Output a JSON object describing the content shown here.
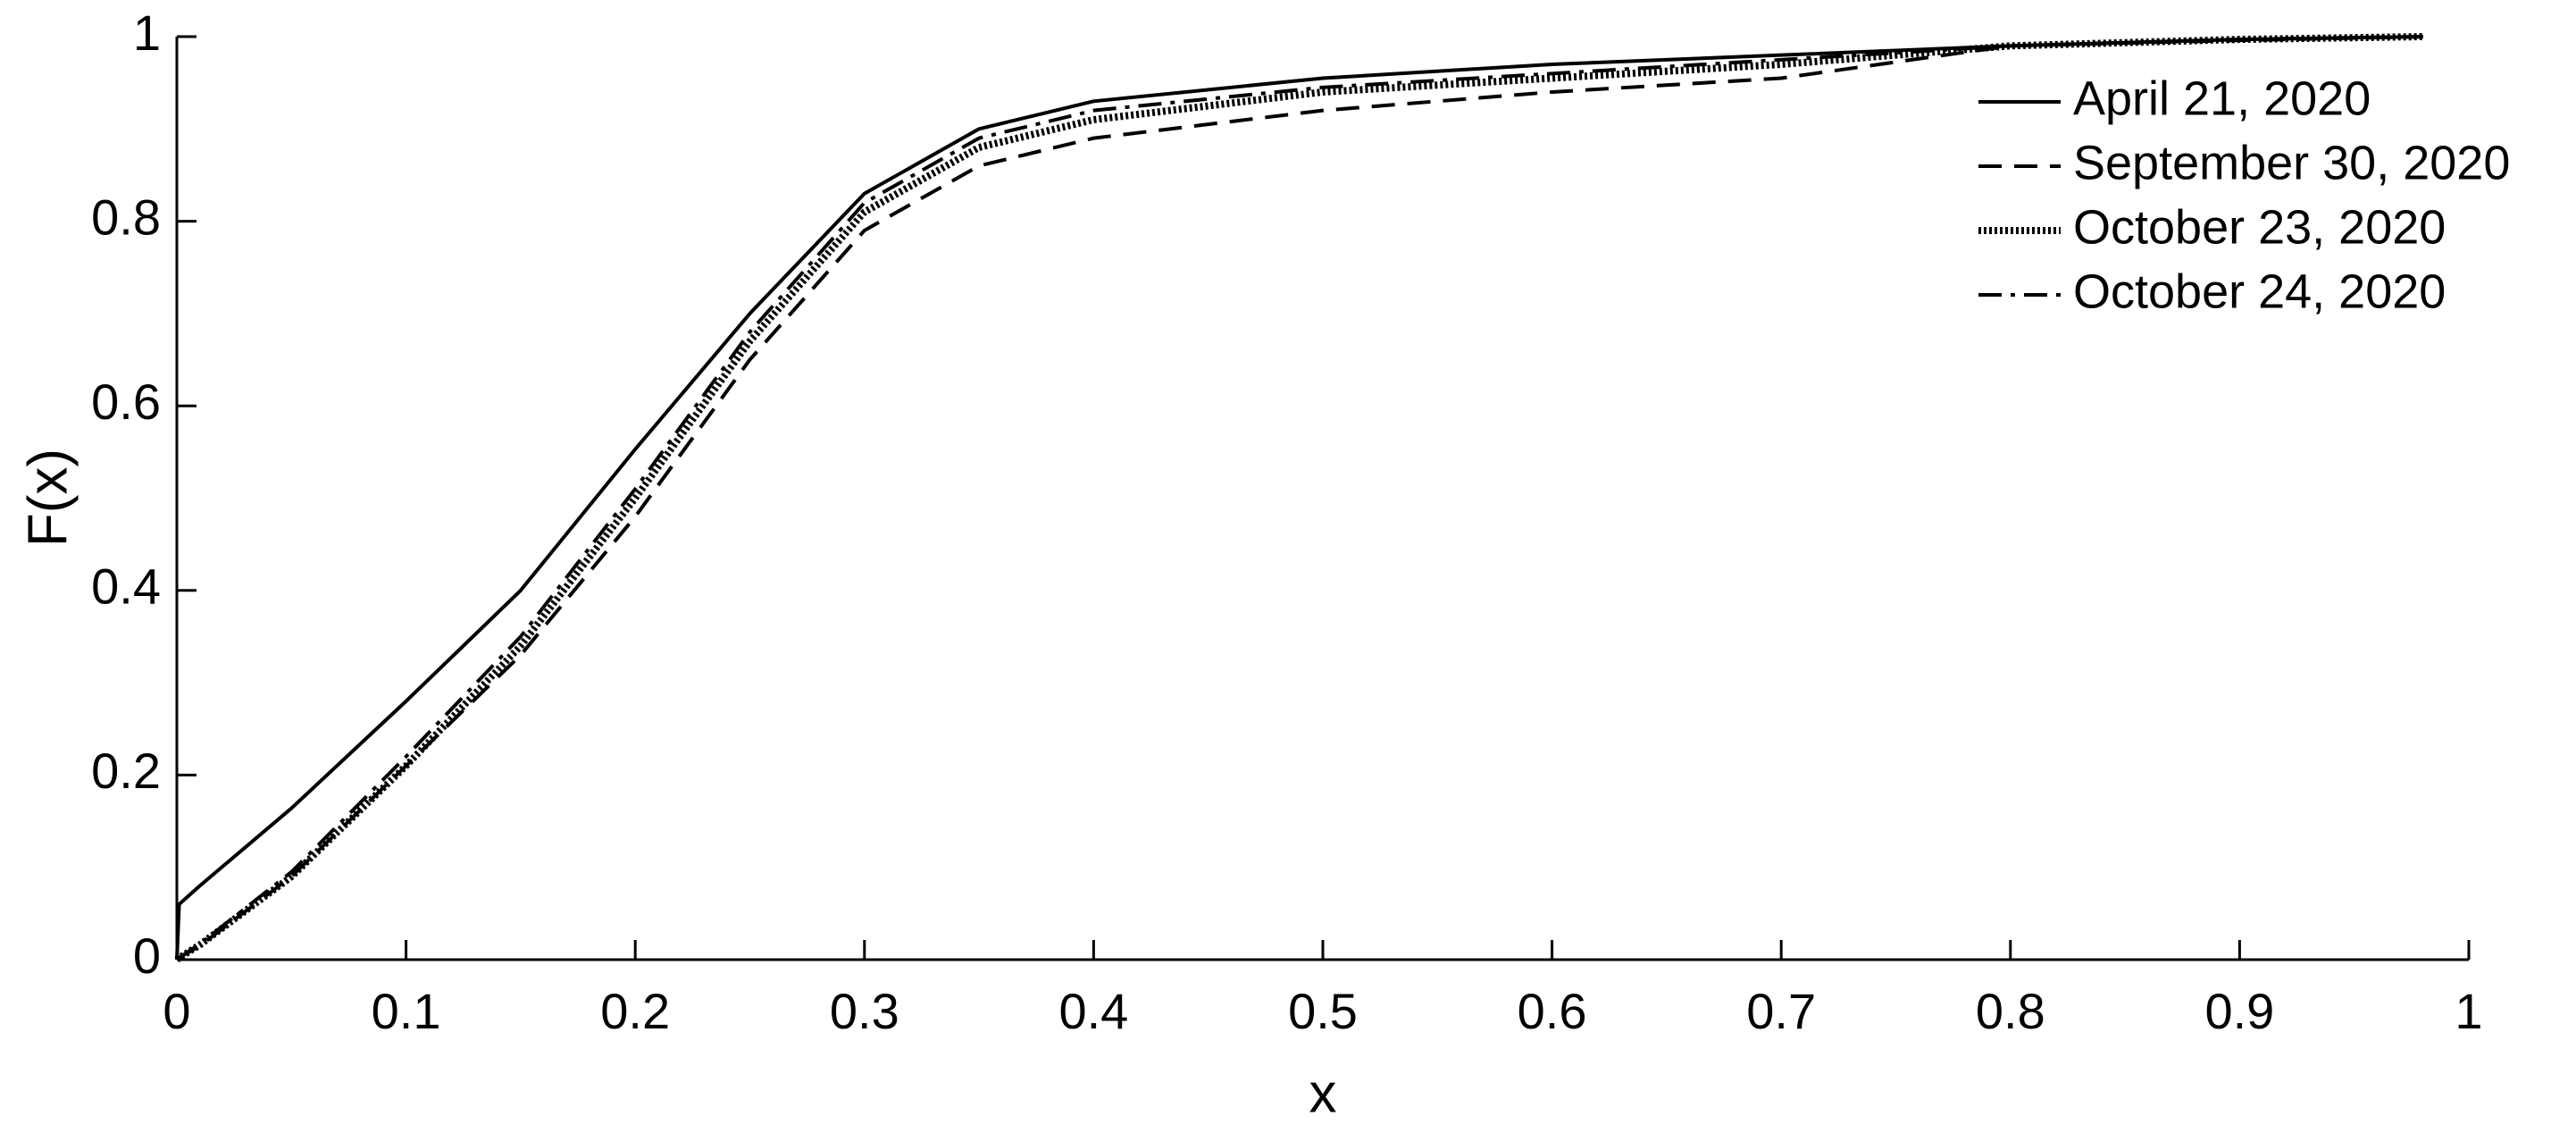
{
  "chart_data": {
    "type": "line",
    "x_label": "x",
    "y_label": "F(x)",
    "x": [
      0,
      0.001,
      0.01,
      0.05,
      0.1,
      0.15,
      0.2,
      0.25,
      0.3,
      0.35,
      0.4,
      0.5,
      0.6,
      0.7,
      0.8,
      0.9,
      0.98
    ],
    "series": [
      {
        "name": "April 21, 2020",
        "color": "#000000",
        "style": "solid",
        "values": [
          0,
          0.06,
          0.08,
          0.164,
          0.28,
          0.4,
          0.553,
          0.7,
          0.83,
          0.9,
          0.93,
          0.955,
          0.97,
          0.98,
          0.99,
          0.997,
          1
        ]
      },
      {
        "name": "September 30, 2020",
        "color": "#000000",
        "style": "dashed",
        "values": [
          0,
          0.002,
          0.015,
          0.09,
          0.21,
          0.33,
          0.48,
          0.65,
          0.79,
          0.86,
          0.89,
          0.92,
          0.94,
          0.955,
          0.99,
          0.996,
          1
        ]
      },
      {
        "name": "October 23, 2020",
        "color": "#000000",
        "style": "dotted",
        "values": [
          0,
          0.002,
          0.016,
          0.09,
          0.21,
          0.34,
          0.5,
          0.67,
          0.81,
          0.88,
          0.91,
          0.94,
          0.955,
          0.97,
          0.99,
          0.997,
          1
        ]
      },
      {
        "name": "October 24, 2020",
        "color": "#000000",
        "style": "dashdot",
        "values": [
          0,
          0.002,
          0.017,
          0.095,
          0.22,
          0.35,
          0.51,
          0.68,
          0.82,
          0.89,
          0.92,
          0.945,
          0.96,
          0.975,
          0.99,
          0.997,
          1
        ]
      }
    ],
    "xlim": [
      0,
      1
    ],
    "ylim": [
      0,
      1
    ],
    "xticks": [
      0,
      0.1,
      0.2,
      0.3,
      0.4,
      0.5,
      0.6,
      0.7,
      0.8,
      0.9,
      1
    ],
    "yticks": [
      0,
      0.2,
      0.4,
      0.6,
      0.8,
      1
    ],
    "grid": false,
    "legend_position": "upper right"
  }
}
